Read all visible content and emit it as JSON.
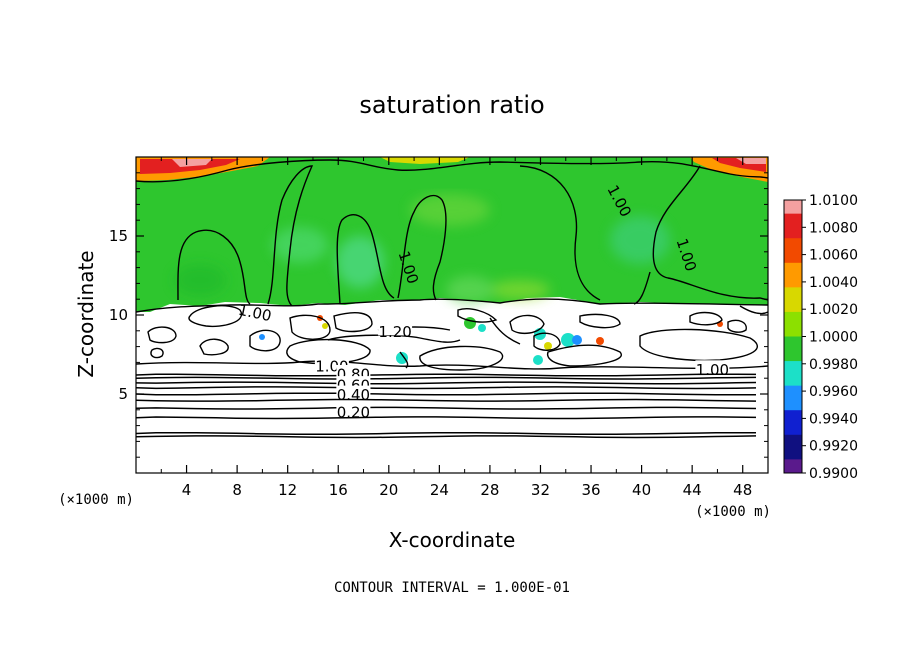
{
  "chart_data": {
    "type": "heatmap",
    "title": "saturation ratio",
    "xlabel": "X-coordinate",
    "ylabel": "Z-coordinate",
    "x_units": "(×1000 m)",
    "y_units": "(×1000 m)",
    "xlim": [
      0,
      50
    ],
    "ylim": [
      0,
      20
    ],
    "x_ticks": [
      "4",
      "8",
      "12",
      "16",
      "20",
      "24",
      "28",
      "32",
      "36",
      "40",
      "44",
      "48"
    ],
    "y_ticks": [
      "5",
      "10",
      "15"
    ],
    "footer": "CONTOUR INTERVAL = 1.000E-01",
    "colorbar": {
      "labels": [
        "1.0100",
        "1.0080",
        "1.0060",
        "1.0040",
        "1.0020",
        "1.0000",
        "0.9980",
        "0.9960",
        "0.9940",
        "0.9920",
        "0.9900"
      ],
      "colors": [
        "#f4a0a0",
        "#e32020",
        "#f24a00",
        "#ff9a00",
        "#d8d800",
        "#8ce000",
        "#2ec62e",
        "#1ce0c8",
        "#1e90ff",
        "#1020d0",
        "#101080",
        "#5a1a8c"
      ]
    },
    "contour_labels": [
      {
        "text": "1.00",
        "x": 38.2,
        "y": 17.2
      },
      {
        "text": "1.00",
        "x": 21.5,
        "y": 13.0
      },
      {
        "text": "1.00",
        "x": 43.5,
        "y": 13.8
      },
      {
        "text": "1.00",
        "x": 9.4,
        "y": 10.1
      },
      {
        "text": "1.20",
        "x": 20.5,
        "y": 8.9
      },
      {
        "text": "1.00",
        "x": 15.5,
        "y": 6.7
      },
      {
        "text": "0.80",
        "x": 17.2,
        "y": 6.2
      },
      {
        "text": "0.60",
        "x": 17.2,
        "y": 5.5
      },
      {
        "text": "0.40",
        "x": 17.2,
        "y": 4.9
      },
      {
        "text": "0.20",
        "x": 17.2,
        "y": 3.8
      },
      {
        "text": "1.00",
        "x": 45.6,
        "y": 6.5
      }
    ],
    "horizontal_contours_z": [
      2.3,
      2.5,
      3.5,
      4.1,
      4.6,
      5.0,
      5.4,
      5.7,
      6.0,
      6.2
    ]
  }
}
